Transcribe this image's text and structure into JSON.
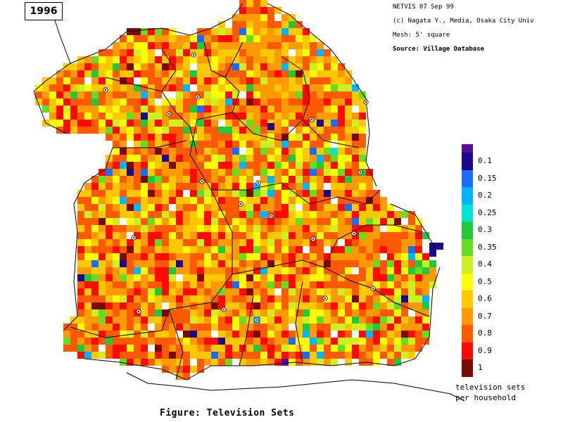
{
  "header": {
    "year": "1996",
    "credits": [
      "NETVIS 07 Sep 99",
      "(c) Nagata Y., Media, Osaka City Univ",
      "Mesh:  5' square",
      "Source:  Village Database"
    ]
  },
  "legend": {
    "items": [
      {
        "label": "0.1",
        "color": "#1a0a8a"
      },
      {
        "label": "0.15",
        "color": "#1a6cff"
      },
      {
        "label": "0.2",
        "color": "#00b4ff"
      },
      {
        "label": "0.25",
        "color": "#00e4d8"
      },
      {
        "label": "0.3",
        "color": "#22c83a"
      },
      {
        "label": "0.35",
        "color": "#66dd22"
      },
      {
        "label": "0.4",
        "color": "#ccf022"
      },
      {
        "label": "0.5",
        "color": "#ffff00"
      },
      {
        "label": "0.6",
        "color": "#ffc800"
      },
      {
        "label": "0.7",
        "color": "#ff9a00"
      },
      {
        "label": "0.8",
        "color": "#ff5a00"
      },
      {
        "label": "0.9",
        "color": "#ff0a00"
      },
      {
        "label": "1",
        "color": "#7a0a00"
      }
    ],
    "top_color": "#5a0a9a",
    "caption_line1": "television sets",
    "caption_line2": "per household"
  },
  "figure_caption": "Figure: Television Sets"
}
